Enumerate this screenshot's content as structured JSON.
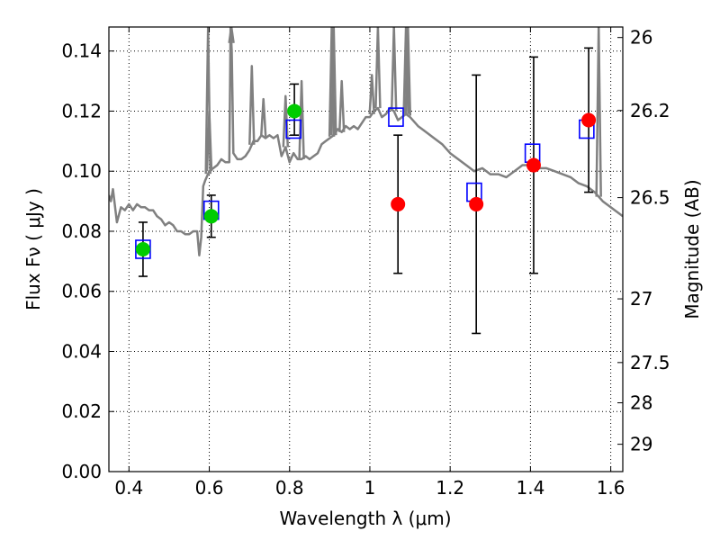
{
  "chart_data": {
    "type": "scatter",
    "xlabel": "Wavelength  λ (μm)",
    "ylabel": "Flux  Fν  ( μJy )",
    "y2label": "Magnitude (AB)",
    "xlim": [
      0.35,
      1.63
    ],
    "ylim": [
      0.0,
      0.148
    ],
    "grid": true,
    "x_ticks": [
      0.4,
      0.6,
      0.8,
      1.0,
      1.2,
      1.4,
      1.6
    ],
    "x_tick_labels": [
      "0.4",
      "0.6",
      "0.8",
      "1",
      "1.2",
      "1.4",
      "1.6"
    ],
    "y_ticks": [
      0.0,
      0.02,
      0.04,
      0.06,
      0.08,
      0.1,
      0.12,
      0.14
    ],
    "y_tick_labels": [
      "0.00",
      "0.02",
      "0.04",
      "0.06",
      "0.08",
      "0.10",
      "0.12",
      "0.14"
    ],
    "y2_ticks": [
      {
        "label": "26",
        "flux": 0.1445
      },
      {
        "label": "26.2",
        "flux": 0.1202
      },
      {
        "label": "26.5",
        "flux": 0.0912
      },
      {
        "label": "27",
        "flux": 0.0575
      },
      {
        "label": "27.5",
        "flux": 0.0363
      },
      {
        "label": "28",
        "flux": 0.0229
      },
      {
        "label": "29",
        "flux": 0.0091
      }
    ],
    "colors": {
      "model": "#808080",
      "model_photometry": "#0000ff",
      "observed_green": "#00cc00",
      "observed_red": "#ff0000",
      "errorbar": "#000000"
    },
    "model_spectrum": {
      "x": [
        0.35,
        0.355,
        0.36,
        0.37,
        0.38,
        0.39,
        0.4,
        0.41,
        0.42,
        0.43,
        0.44,
        0.45,
        0.46,
        0.47,
        0.48,
        0.49,
        0.5,
        0.51,
        0.52,
        0.53,
        0.54,
        0.55,
        0.56,
        0.57,
        0.575,
        0.58,
        0.585,
        0.59,
        0.6,
        0.61,
        0.62,
        0.63,
        0.64,
        0.65,
        0.653,
        0.656,
        0.66,
        0.67,
        0.68,
        0.69,
        0.7,
        0.71,
        0.72,
        0.73,
        0.74,
        0.75,
        0.76,
        0.77,
        0.78,
        0.79,
        0.8,
        0.81,
        0.82,
        0.83,
        0.84,
        0.85,
        0.86,
        0.87,
        0.88,
        0.89,
        0.9,
        0.91,
        0.92,
        0.93,
        0.94,
        0.95,
        0.96,
        0.97,
        0.98,
        0.99,
        1.0,
        1.01,
        1.02,
        1.03,
        1.04,
        1.05,
        1.06,
        1.07,
        1.08,
        1.09,
        1.1,
        1.12,
        1.14,
        1.16,
        1.18,
        1.2,
        1.22,
        1.24,
        1.26,
        1.28,
        1.3,
        1.32,
        1.34,
        1.36,
        1.38,
        1.4,
        1.42,
        1.44,
        1.46,
        1.48,
        1.5,
        1.52,
        1.54,
        1.56,
        1.58,
        1.6,
        1.61,
        1.62,
        1.63
      ],
      "y": [
        0.092,
        0.09,
        0.094,
        0.083,
        0.088,
        0.087,
        0.089,
        0.087,
        0.089,
        0.088,
        0.088,
        0.087,
        0.087,
        0.085,
        0.084,
        0.082,
        0.083,
        0.082,
        0.08,
        0.08,
        0.079,
        0.079,
        0.08,
        0.08,
        0.072,
        0.078,
        0.095,
        0.097,
        0.1,
        0.101,
        0.102,
        0.104,
        0.103,
        0.103,
        0.148,
        0.14,
        0.106,
        0.104,
        0.104,
        0.105,
        0.107,
        0.11,
        0.11,
        0.112,
        0.111,
        0.112,
        0.111,
        0.112,
        0.105,
        0.108,
        0.103,
        0.106,
        0.104,
        0.104,
        0.105,
        0.104,
        0.105,
        0.106,
        0.109,
        0.11,
        0.111,
        0.112,
        0.114,
        0.113,
        0.115,
        0.114,
        0.115,
        0.114,
        0.116,
        0.118,
        0.118,
        0.12,
        0.121,
        0.118,
        0.119,
        0.121,
        0.12,
        0.117,
        0.118,
        0.119,
        0.118,
        0.115,
        0.113,
        0.111,
        0.109,
        0.106,
        0.104,
        0.102,
        0.1,
        0.101,
        0.099,
        0.099,
        0.098,
        0.1,
        0.102,
        0.102,
        0.101,
        0.101,
        0.1,
        0.099,
        0.098,
        0.096,
        0.095,
        0.093,
        0.09,
        0.088,
        0.087,
        0.086,
        0.085
      ]
    },
    "emission_lines": [
      {
        "x": 0.597,
        "peak": 0.148
      },
      {
        "x": 0.6,
        "peak": 0.12
      },
      {
        "x": 0.655,
        "peak": 0.148
      },
      {
        "x": 0.706,
        "peak": 0.135
      },
      {
        "x": 0.735,
        "peak": 0.124
      },
      {
        "x": 0.79,
        "peak": 0.125
      },
      {
        "x": 0.83,
        "peak": 0.13
      },
      {
        "x": 0.905,
        "peak": 0.148
      },
      {
        "x": 0.91,
        "peak": 0.148
      },
      {
        "x": 0.93,
        "peak": 0.13
      },
      {
        "x": 1.005,
        "peak": 0.132
      },
      {
        "x": 1.02,
        "peak": 0.148
      },
      {
        "x": 1.06,
        "peak": 0.148
      },
      {
        "x": 1.09,
        "peak": 0.148
      },
      {
        "x": 1.095,
        "peak": 0.148
      },
      {
        "x": 1.57,
        "peak": 0.148
      }
    ],
    "model_photometry": {
      "x": [
        0.435,
        0.605,
        0.81,
        1.065,
        1.26,
        1.405,
        1.54
      ],
      "y": [
        0.074,
        0.087,
        0.114,
        0.118,
        0.093,
        0.106,
        0.114
      ]
    },
    "observed": [
      {
        "x": 0.435,
        "y": 0.074,
        "err_low": 0.065,
        "err_high": 0.083,
        "color": "green"
      },
      {
        "x": 0.605,
        "y": 0.085,
        "err_low": 0.078,
        "err_high": 0.092,
        "color": "green"
      },
      {
        "x": 0.812,
        "y": 0.12,
        "err_low": 0.112,
        "err_high": 0.129,
        "color": "green"
      },
      {
        "x": 1.07,
        "y": 0.089,
        "err_low": 0.066,
        "err_high": 0.112,
        "color": "red"
      },
      {
        "x": 1.265,
        "y": 0.089,
        "err_low": 0.046,
        "err_high": 0.132,
        "color": "red"
      },
      {
        "x": 1.408,
        "y": 0.102,
        "err_low": 0.066,
        "err_high": 0.138,
        "color": "red"
      },
      {
        "x": 1.545,
        "y": 0.117,
        "err_low": 0.093,
        "err_high": 0.141,
        "color": "red"
      }
    ]
  }
}
